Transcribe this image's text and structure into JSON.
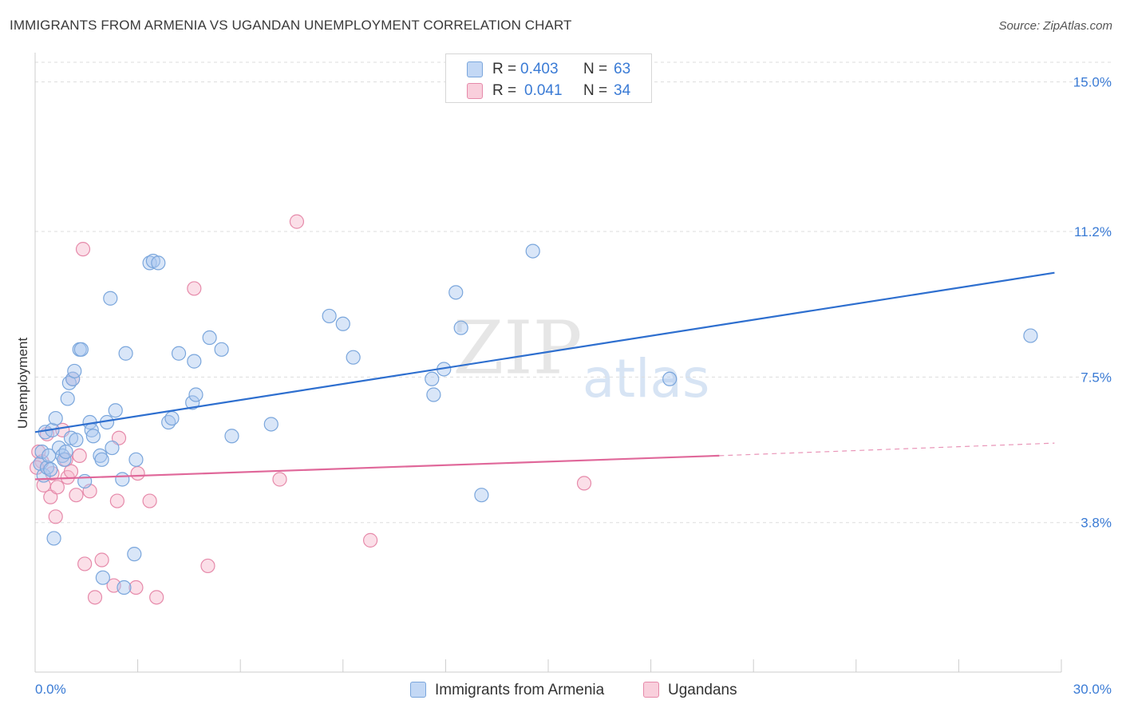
{
  "chart_data": {
    "type": "scatter",
    "title": "IMMIGRANTS FROM ARMENIA VS UGANDAN UNEMPLOYMENT CORRELATION CHART",
    "source": "Source: ZipAtlas.com",
    "xlabel": "",
    "ylabel": "Unemployment",
    "xlim": [
      0,
      30
    ],
    "ylim": [
      0,
      15.5
    ],
    "x_tick_labels": [
      "0.0%",
      "30.0%"
    ],
    "y_ticks": [
      3.8,
      7.5,
      11.2,
      15.0
    ],
    "y_tick_labels": [
      "3.8%",
      "7.5%",
      "11.2%",
      "15.0%"
    ],
    "grid": true,
    "watermark": {
      "zip": "ZIP",
      "atlas": "atlas"
    },
    "colors": {
      "armenia_fill": "#aac8f0",
      "armenia_stroke": "#7aa6dc",
      "armenia_line": "#2e6fcf",
      "ugandans_fill": "#f6b8cc",
      "ugandans_stroke": "#e68aaa",
      "ugandans_line": "#e0689a",
      "tick_label": "#3a7bd5",
      "grid": "#dddddd",
      "axis": "#cccccc"
    },
    "legend": [
      {
        "r_label": "R =",
        "r_value": "0.403",
        "n_label": "N =",
        "n_value": "63"
      },
      {
        "r_label": "R =",
        "r_value": "0.041",
        "n_label": "N =",
        "n_value": "34"
      }
    ],
    "series": [
      {
        "name": "Immigrants from Armenia",
        "trend": {
          "x0": 0,
          "y0": 6.1,
          "x1": 29.8,
          "y1": 10.15
        },
        "points": [
          [
            0.15,
            5.3
          ],
          [
            0.2,
            5.6
          ],
          [
            0.25,
            5.0
          ],
          [
            0.3,
            6.1
          ],
          [
            0.35,
            5.2
          ],
          [
            0.5,
            6.15
          ],
          [
            0.55,
            3.4
          ],
          [
            0.6,
            6.45
          ],
          [
            0.7,
            5.7
          ],
          [
            0.8,
            5.5
          ],
          [
            0.85,
            5.4
          ],
          [
            0.9,
            5.6
          ],
          [
            0.95,
            6.95
          ],
          [
            1.0,
            7.35
          ],
          [
            1.05,
            5.95
          ],
          [
            1.1,
            7.45
          ],
          [
            1.15,
            7.65
          ],
          [
            1.3,
            8.2
          ],
          [
            1.35,
            8.2
          ],
          [
            1.45,
            4.85
          ],
          [
            1.6,
            6.35
          ],
          [
            1.65,
            6.15
          ],
          [
            1.7,
            6.0
          ],
          [
            1.9,
            5.5
          ],
          [
            1.95,
            5.4
          ],
          [
            1.98,
            2.4
          ],
          [
            2.1,
            6.35
          ],
          [
            2.2,
            9.5
          ],
          [
            2.25,
            5.7
          ],
          [
            2.35,
            6.65
          ],
          [
            2.55,
            4.9
          ],
          [
            2.6,
            2.15
          ],
          [
            2.65,
            8.1
          ],
          [
            2.9,
            3.0
          ],
          [
            2.95,
            5.4
          ],
          [
            3.35,
            10.4
          ],
          [
            3.45,
            10.45
          ],
          [
            3.6,
            10.4
          ],
          [
            3.9,
            6.35
          ],
          [
            4.0,
            6.45
          ],
          [
            4.2,
            8.1
          ],
          [
            4.6,
            6.85
          ],
          [
            4.7,
            7.05
          ],
          [
            4.65,
            7.9
          ],
          [
            5.1,
            8.5
          ],
          [
            5.45,
            8.2
          ],
          [
            5.75,
            6.0
          ],
          [
            6.9,
            6.3
          ],
          [
            8.6,
            9.05
          ],
          [
            9.0,
            8.85
          ],
          [
            9.3,
            8.0
          ],
          [
            11.6,
            7.45
          ],
          [
            11.65,
            7.05
          ],
          [
            11.95,
            7.7
          ],
          [
            12.3,
            9.65
          ],
          [
            12.45,
            8.75
          ],
          [
            13.05,
            4.5
          ],
          [
            14.55,
            10.7
          ],
          [
            18.55,
            7.45
          ],
          [
            29.1,
            8.55
          ],
          [
            0.4,
            5.5
          ],
          [
            1.2,
            5.9
          ],
          [
            0.45,
            5.15
          ]
        ]
      },
      {
        "name": "Ugandans",
        "trend": {
          "x0": 0,
          "y0": 4.9,
          "x1": 20.0,
          "y1": 5.5,
          "dash_x1": 29.8,
          "dash_y1": 5.82
        },
        "points": [
          [
            0.1,
            5.6
          ],
          [
            0.2,
            5.35
          ],
          [
            0.25,
            4.75
          ],
          [
            0.35,
            6.05
          ],
          [
            0.45,
            4.45
          ],
          [
            0.5,
            5.05
          ],
          [
            0.6,
            3.95
          ],
          [
            0.65,
            4.7
          ],
          [
            0.8,
            6.15
          ],
          [
            0.9,
            5.4
          ],
          [
            0.95,
            4.95
          ],
          [
            1.05,
            5.1
          ],
          [
            1.1,
            7.45
          ],
          [
            1.2,
            4.5
          ],
          [
            1.3,
            5.5
          ],
          [
            1.4,
            10.75
          ],
          [
            1.45,
            2.75
          ],
          [
            1.6,
            4.6
          ],
          [
            1.75,
            1.9
          ],
          [
            1.95,
            2.85
          ],
          [
            2.3,
            2.2
          ],
          [
            2.4,
            4.35
          ],
          [
            2.45,
            5.95
          ],
          [
            2.95,
            2.15
          ],
          [
            3.0,
            5.05
          ],
          [
            3.35,
            4.35
          ],
          [
            3.55,
            1.9
          ],
          [
            4.65,
            9.75
          ],
          [
            5.05,
            2.7
          ],
          [
            7.15,
            4.9
          ],
          [
            7.65,
            11.45
          ],
          [
            9.8,
            3.35
          ],
          [
            16.05,
            4.8
          ],
          [
            0.05,
            5.2
          ]
        ]
      }
    ],
    "bottom_legend": [
      "Immigrants from Armenia",
      "Ugandans"
    ]
  }
}
